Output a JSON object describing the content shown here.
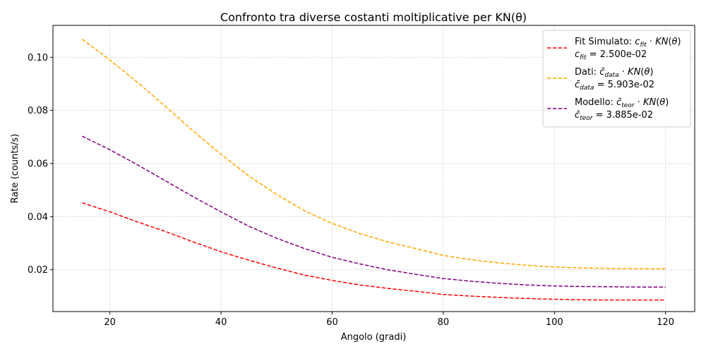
{
  "chart_data": {
    "type": "line",
    "title": "Confronto tra diverse costanti moltiplicative per KN(θ)",
    "xlabel": "Angolo (gradi)",
    "ylabel": "Rate (counts/s)",
    "xlim": [
      9.75,
      125.25
    ],
    "ylim": [
      0.00426,
      0.11201
    ],
    "xticks": [
      "20",
      "40",
      "60",
      "80",
      "100",
      "120"
    ],
    "yticks": [
      "0.02",
      "0.04",
      "0.06",
      "0.08",
      "0.10"
    ],
    "grid": true,
    "grid_style": "dotted",
    "legend_position": "top-right",
    "x": [
      15,
      20,
      25,
      30,
      35,
      40,
      45,
      50,
      55,
      60,
      65,
      70,
      75,
      80,
      85,
      90,
      95,
      100,
      105,
      110,
      115,
      120
    ],
    "series": [
      {
        "name": "Fit Simulato",
        "color": "#ff0000",
        "const_symbol": "c",
        "const_sub": "fit",
        "const_bar": false,
        "const_value": "2.500e-02",
        "values": [
          0.0452,
          0.0418,
          0.038,
          0.0344,
          0.0305,
          0.0268,
          0.0236,
          0.0207,
          0.018,
          0.016,
          0.0143,
          0.013,
          0.0119,
          0.0107,
          0.0101,
          0.0096,
          0.0092,
          0.0089,
          0.0087,
          0.0086,
          0.0086,
          0.0086
        ]
      },
      {
        "name": "Dati",
        "color": "#ffa500",
        "const_symbol": "c",
        "const_sub": "data",
        "const_bar": true,
        "const_value": "5.903e-02",
        "values": [
          0.1068,
          0.099,
          0.0905,
          0.0815,
          0.0722,
          0.0635,
          0.0553,
          0.0484,
          0.0422,
          0.0375,
          0.0336,
          0.0305,
          0.028,
          0.0254,
          0.0238,
          0.0226,
          0.0217,
          0.021,
          0.0207,
          0.0205,
          0.0204,
          0.0204
        ]
      },
      {
        "name": "Modello",
        "color": "#800080",
        "const_symbol": "c",
        "const_sub": "teor",
        "const_bar": true,
        "const_value": "3.885e-02",
        "values": [
          0.0703,
          0.0652,
          0.0595,
          0.0535,
          0.0475,
          0.0418,
          0.0364,
          0.0319,
          0.028,
          0.0247,
          0.0222,
          0.02,
          0.0183,
          0.0167,
          0.0157,
          0.0149,
          0.0143,
          0.0139,
          0.0137,
          0.0136,
          0.0135,
          0.0135
        ]
      }
    ],
    "legend_formula": "KN(θ)"
  }
}
